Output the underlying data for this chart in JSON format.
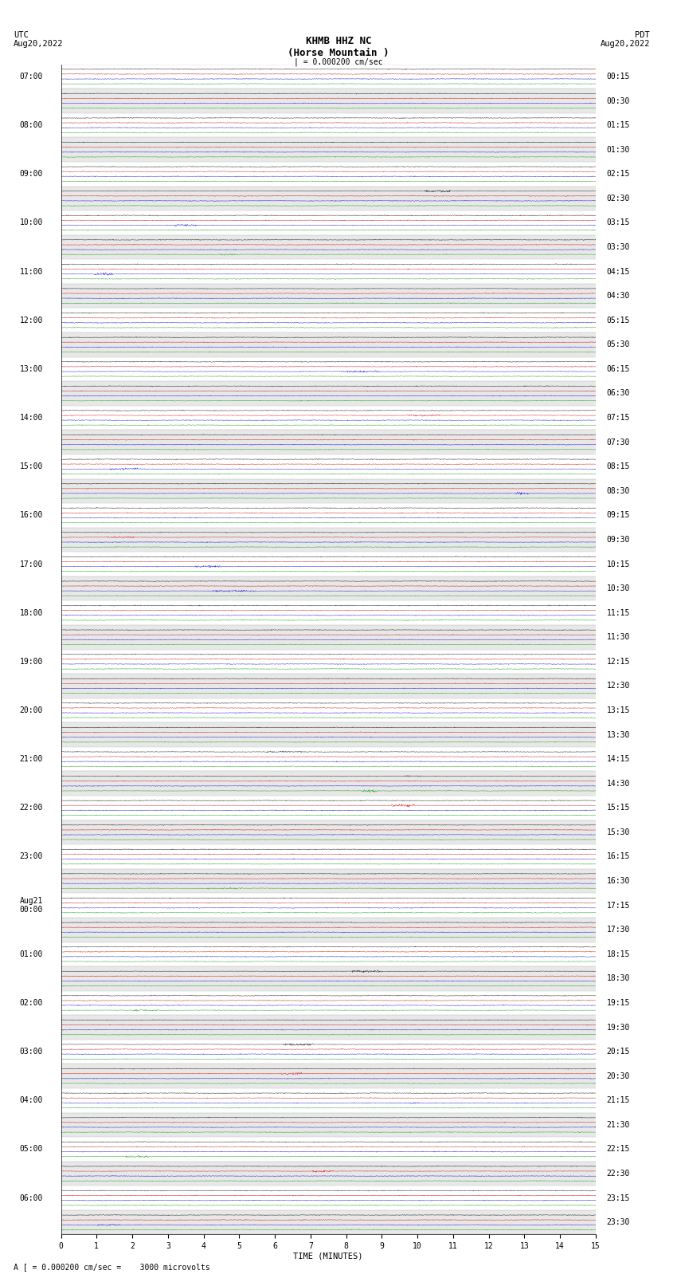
{
  "title_line1": "KHMB HHZ NC",
  "title_line2": "(Horse Mountain )",
  "scale_line": "| = 0.000200 cm/sec",
  "left_label": "UTC",
  "left_date": "Aug20,2022",
  "right_label": "PDT",
  "right_date": "Aug20,2022",
  "bottom_label": "TIME (MINUTES)",
  "footnote": "A [ = 0.000200 cm/sec =    3000 microvolts",
  "xlabel_ticks": [
    0,
    1,
    2,
    3,
    4,
    5,
    6,
    7,
    8,
    9,
    10,
    11,
    12,
    13,
    14,
    15
  ],
  "utc_times": [
    "07:00",
    "",
    "08:00",
    "",
    "09:00",
    "",
    "10:00",
    "",
    "11:00",
    "",
    "12:00",
    "",
    "13:00",
    "",
    "14:00",
    "",
    "15:00",
    "",
    "16:00",
    "",
    "17:00",
    "",
    "18:00",
    "",
    "19:00",
    "",
    "20:00",
    "",
    "21:00",
    "",
    "22:00",
    "",
    "23:00",
    "",
    "Aug21\n00:00",
    "",
    "01:00",
    "",
    "02:00",
    "",
    "03:00",
    "",
    "04:00",
    "",
    "05:00",
    "",
    "06:00",
    ""
  ],
  "pdt_times": [
    "00:15",
    "00:30",
    "01:15",
    "01:30",
    "02:15",
    "02:30",
    "03:15",
    "03:30",
    "04:15",
    "04:30",
    "05:15",
    "05:30",
    "06:15",
    "06:30",
    "07:15",
    "07:30",
    "08:15",
    "08:30",
    "09:15",
    "09:30",
    "10:15",
    "10:30",
    "11:15",
    "11:30",
    "12:15",
    "12:30",
    "13:15",
    "13:30",
    "14:15",
    "14:30",
    "15:15",
    "15:30",
    "16:15",
    "16:30",
    "17:15",
    "17:30",
    "18:15",
    "18:30",
    "19:15",
    "19:30",
    "20:15",
    "20:30",
    "21:15",
    "21:30",
    "22:15",
    "22:30",
    "23:15",
    "23:30"
  ],
  "row_colors": [
    "#000000",
    "#cc0000",
    "#0000cc",
    "#009900"
  ],
  "bg_colors": [
    "#ffffff",
    "#e8e8e8"
  ],
  "n_rows": 48,
  "traces_per_row": 4,
  "fig_width": 8.5,
  "fig_height": 16.13,
  "dpi": 100,
  "noise_amplitude": 0.3,
  "x_min": 0,
  "x_max": 15,
  "title_fontsize": 9,
  "label_fontsize": 7.5,
  "tick_fontsize": 7,
  "scale_text": "| = 0.000200 cm/sec"
}
